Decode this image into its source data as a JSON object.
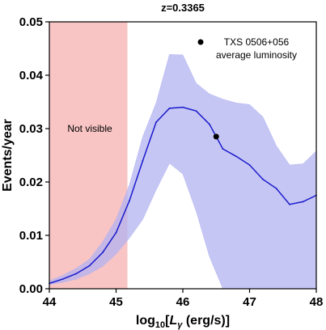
{
  "chart_data": {
    "type": "line",
    "title": "z=0.3365",
    "ylabel": "Events/year",
    "xlabel": {
      "prefix": "log",
      "sub": "10",
      "bracket_open": "[",
      "var": "L",
      "var_sub": "γ",
      "unit": " (erg/s)]"
    },
    "xlim": [
      44,
      48
    ],
    "ylim": [
      0,
      0.05
    ],
    "xticks": [
      44,
      45,
      46,
      47,
      48
    ],
    "xtick_labels": [
      "44",
      "45",
      "46",
      "47",
      "48"
    ],
    "yticks": [
      0,
      0.01,
      0.02,
      0.03,
      0.04,
      0.05
    ],
    "ytick_labels": [
      "0.00",
      "0.01",
      "0.02",
      "0.03",
      "0.04",
      "0.05"
    ],
    "grid": false,
    "shaded_region": {
      "x": [
        44,
        45.17
      ],
      "label": "Not visible",
      "color": "#f8c4c4"
    },
    "series": [
      {
        "color": "#1a1acc",
        "band_color": "#b3b3f2",
        "x": [
          44.0,
          44.2,
          44.4,
          44.6,
          44.8,
          45.0,
          45.2,
          45.4,
          45.6,
          45.8,
          46.0,
          46.2,
          46.4,
          46.6,
          46.8,
          47.0,
          47.2,
          47.4,
          47.6,
          47.8,
          48.0
        ],
        "y": [
          0.001,
          0.0018,
          0.0028,
          0.0043,
          0.0068,
          0.0105,
          0.0165,
          0.024,
          0.0312,
          0.0338,
          0.034,
          0.0333,
          0.0308,
          0.0262,
          0.0248,
          0.0232,
          0.0205,
          0.0188,
          0.0158,
          0.0163,
          0.0175
        ],
        "lower": [
          0.0008,
          0.0012,
          0.0018,
          0.0028,
          0.0042,
          0.0065,
          0.0095,
          0.013,
          0.0185,
          0.0235,
          0.0215,
          0.0145,
          0.006,
          0.0,
          0.0,
          0.0,
          0.0,
          0.0,
          0.0,
          0.0,
          0.0
        ],
        "upper": [
          0.0015,
          0.0025,
          0.0038,
          0.0055,
          0.0088,
          0.013,
          0.0195,
          0.0285,
          0.0348,
          0.0439,
          0.0438,
          0.0385,
          0.0365,
          0.0355,
          0.0348,
          0.0345,
          0.0322,
          0.0268,
          0.0232,
          0.0234,
          0.0258
        ]
      }
    ],
    "point": {
      "x": 46.5,
      "y": 0.0285,
      "color": "#000000"
    },
    "legend": {
      "position": "top-right",
      "marker_color": "#000000",
      "line1": "TXS 0506+056",
      "line2": "average luminosity"
    }
  }
}
